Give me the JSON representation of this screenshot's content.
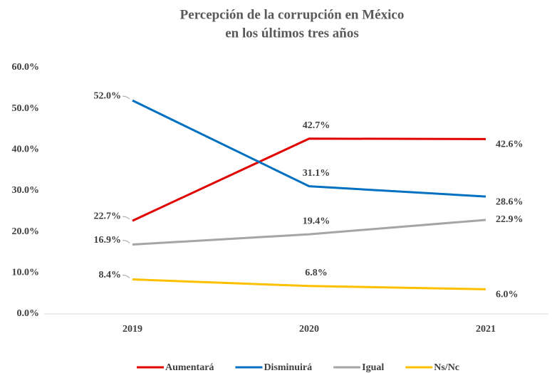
{
  "chart_data": {
    "type": "line",
    "title": [
      "Percepción de la corrupción en México",
      "en los últimos tres años"
    ],
    "categories": [
      "2019",
      "2020",
      "2021"
    ],
    "ylim": [
      0,
      60
    ],
    "yticks": [
      {
        "value": 0,
        "label": "0.0%"
      },
      {
        "value": 10,
        "label": "10.0%"
      },
      {
        "value": 20,
        "label": "20.0%"
      },
      {
        "value": 30,
        "label": "30.0%"
      },
      {
        "value": 40,
        "label": "40.0%"
      },
      {
        "value": 50,
        "label": "50.0%"
      },
      {
        "value": 60,
        "label": "60.0%"
      }
    ],
    "grid": false,
    "legend": "bottom",
    "series": [
      {
        "name": "Aumentará",
        "color": "#e00000",
        "values": [
          22.7,
          42.7,
          42.6
        ],
        "value_labels": [
          "22.7%",
          "42.7%",
          "42.6%"
        ]
      },
      {
        "name": "Disminuirá",
        "color": "#0070c0",
        "values": [
          52.0,
          31.1,
          28.6
        ],
        "value_labels": [
          "52.0%",
          "31.1%",
          "28.6%"
        ]
      },
      {
        "name": "Igual",
        "color": "#a5a5a5",
        "values": [
          16.9,
          19.4,
          22.9
        ],
        "value_labels": [
          "16.9%",
          "19.4%",
          "22.9%"
        ]
      },
      {
        "name": "Ns/Nc",
        "color": "#ffc000",
        "values": [
          8.4,
          6.8,
          6.0
        ],
        "value_labels": [
          "8.4%",
          "6.8%",
          "6.0%"
        ]
      }
    ]
  }
}
